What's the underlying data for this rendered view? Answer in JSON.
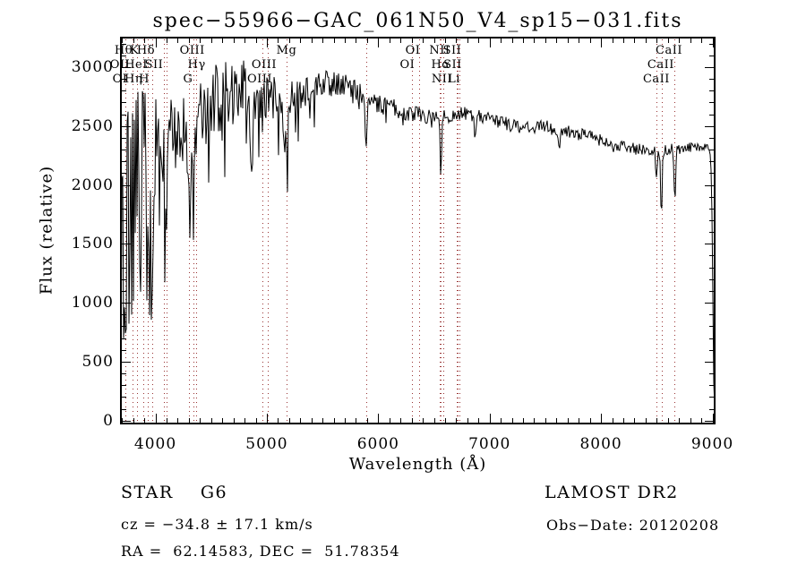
{
  "title": "spec−55966−GAC_061N50_V4_sp15−031.fits",
  "annotations": {
    "class_line": "STAR    G6",
    "survey": "LAMOST DR2",
    "cz": "cz = −34.8 ± 17.1 km/s",
    "obs_date": "Obs−Date: 20120208",
    "ra_dec": "RA =  62.14583, DEC =  51.78354"
  },
  "colors": {
    "spectrum": "#000000",
    "line_marker": "#993333",
    "axis": "#000000",
    "text": "#000000",
    "background": "#ffffff"
  },
  "chart_data": {
    "type": "line",
    "title": "spec−55966−GAC_061N50_V4_sp15−031.fits",
    "xlabel": "Wavelength (Å)",
    "ylabel": "Flux (relative)",
    "xlim": [
      3690,
      9020
    ],
    "ylim": [
      -25,
      3250
    ],
    "x_major_ticks": [
      4000,
      5000,
      6000,
      7000,
      8000,
      9000
    ],
    "y_major_ticks": [
      0,
      500,
      1000,
      1500,
      2000,
      2500,
      3000
    ],
    "minor_tick_step_x": 100,
    "minor_tick_step_y": 100,
    "grid": false,
    "legend": null,
    "continuum_points": [
      [
        3690,
        1500
      ],
      [
        3760,
        1800
      ],
      [
        3830,
        1950
      ],
      [
        3900,
        2100
      ],
      [
        3960,
        2250
      ],
      [
        4050,
        2350
      ],
      [
        4150,
        2420
      ],
      [
        4250,
        2470
      ],
      [
        4350,
        2550
      ],
      [
        4450,
        2650
      ],
      [
        4550,
        2720
      ],
      [
        4650,
        2780
      ],
      [
        4750,
        2820
      ],
      [
        4850,
        2810
      ],
      [
        4950,
        2760
      ],
      [
        5050,
        2720
      ],
      [
        5150,
        2720
      ],
      [
        5250,
        2760
      ],
      [
        5350,
        2800
      ],
      [
        5450,
        2830
      ],
      [
        5550,
        2860
      ],
      [
        5650,
        2870
      ],
      [
        5750,
        2840
      ],
      [
        5850,
        2780
      ],
      [
        5950,
        2700
      ],
      [
        6050,
        2670
      ],
      [
        6150,
        2650
      ],
      [
        6250,
        2620
      ],
      [
        6350,
        2600
      ],
      [
        6450,
        2570
      ],
      [
        6550,
        2560
      ],
      [
        6650,
        2590
      ],
      [
        6750,
        2610
      ],
      [
        6850,
        2600
      ],
      [
        6950,
        2570
      ],
      [
        7050,
        2540
      ],
      [
        7150,
        2520
      ],
      [
        7250,
        2490
      ],
      [
        7350,
        2480
      ],
      [
        7450,
        2495
      ],
      [
        7550,
        2500
      ],
      [
        7650,
        2470
      ],
      [
        7750,
        2440
      ],
      [
        7850,
        2420
      ],
      [
        7950,
        2400
      ],
      [
        8050,
        2370
      ],
      [
        8150,
        2340
      ],
      [
        8250,
        2315
      ],
      [
        8350,
        2300
      ],
      [
        8450,
        2295
      ],
      [
        8550,
        2300
      ],
      [
        8650,
        2305
      ],
      [
        8750,
        2315
      ],
      [
        8850,
        2330
      ],
      [
        8940,
        2330
      ],
      [
        8985,
        2280
      ],
      [
        9000,
        1600
      ],
      [
        9008,
        500
      ],
      [
        9015,
        160
      ],
      [
        9020,
        150
      ]
    ],
    "noise_envelope": [
      [
        3690,
        950
      ],
      [
        3780,
        1000
      ],
      [
        3880,
        950
      ],
      [
        3950,
        650
      ],
      [
        4020,
        420
      ],
      [
        4150,
        350
      ],
      [
        4350,
        320
      ],
      [
        4600,
        310
      ],
      [
        4850,
        240
      ],
      [
        5050,
        200
      ],
      [
        5250,
        170
      ],
      [
        5450,
        120
      ],
      [
        5700,
        100
      ],
      [
        5950,
        85
      ],
      [
        6250,
        72
      ],
      [
        6550,
        65
      ],
      [
        7000,
        58
      ],
      [
        7500,
        55
      ],
      [
        8000,
        50
      ],
      [
        8600,
        48
      ],
      [
        9020,
        45
      ]
    ],
    "absorption_features": [
      {
        "wl": 3933,
        "depth": 900,
        "sigma": 14
      },
      {
        "wl": 3968,
        "depth": 800,
        "sigma": 14
      },
      {
        "wl": 4101,
        "depth": 600,
        "sigma": 12
      },
      {
        "wl": 4304,
        "depth": 850,
        "sigma": 13
      },
      {
        "wl": 4340,
        "depth": 700,
        "sigma": 10
      },
      {
        "wl": 4861,
        "depth": 750,
        "sigma": 10
      },
      {
        "wl": 5175,
        "depth": 450,
        "sigma": 16
      },
      {
        "wl": 5890,
        "depth": 400,
        "sigma": 9
      },
      {
        "wl": 6563,
        "depth": 500,
        "sigma": 6
      },
      {
        "wl": 6867,
        "depth": 140,
        "sigma": 9
      },
      {
        "wl": 7620,
        "depth": 160,
        "sigma": 11
      },
      {
        "wl": 8498,
        "depth": 250,
        "sigma": 7
      },
      {
        "wl": 8542,
        "depth": 540,
        "sigma": 7
      },
      {
        "wl": 8662,
        "depth": 430,
        "sigma": 7
      }
    ],
    "line_markers": [
      3727,
      3798,
      3835,
      3889,
      3933,
      3968,
      4072,
      4101,
      4304,
      4340,
      4363,
      4959,
      5007,
      5175,
      5890,
      6300,
      6364,
      6548,
      6563,
      6583,
      6708,
      6716,
      6731,
      8498,
      8542,
      8662
    ],
    "line_labels": [
      {
        "text": "Hθ",
        "row": 1,
        "wl": 3714
      },
      {
        "text": "K",
        "row": 1,
        "wl": 3811
      },
      {
        "text": "Hδ",
        "row": 1,
        "wl": 3915
      },
      {
        "text": "OIII",
        "row": 1,
        "wl": 4331
      },
      {
        "text": "Mg",
        "row": 1,
        "wl": 5177
      },
      {
        "text": "OI",
        "row": 1,
        "wl": 6311
      },
      {
        "text": "NII",
        "row": 1,
        "wl": 6552
      },
      {
        "text": "SII",
        "row": 1,
        "wl": 6664
      },
      {
        "text": "CaII",
        "row": 1,
        "wl": 8610
      },
      {
        "text": "OII",
        "row": 2,
        "wl": 3682
      },
      {
        "text": "HeI",
        "row": 2,
        "wl": 3827
      },
      {
        "text": "SII",
        "row": 2,
        "wl": 3987
      },
      {
        "text": "Hγ",
        "row": 2,
        "wl": 4371
      },
      {
        "text": "OIII",
        "row": 2,
        "wl": 4976
      },
      {
        "text": "OI",
        "row": 2,
        "wl": 6262
      },
      {
        "text": "Hα",
        "row": 2,
        "wl": 6560
      },
      {
        "text": "SII",
        "row": 2,
        "wl": 6668
      },
      {
        "text": "CaII",
        "row": 2,
        "wl": 8537
      },
      {
        "text": "OI",
        "row": 3,
        "wl": 3682
      },
      {
        "text": "Hη",
        "row": 3,
        "wl": 3803
      },
      {
        "text": "H",
        "row": 3,
        "wl": 3899
      },
      {
        "text": "G",
        "row": 3,
        "wl": 4293
      },
      {
        "text": "OIII",
        "row": 3,
        "wl": 4936
      },
      {
        "text": "NII",
        "row": 3,
        "wl": 6572
      },
      {
        "text": "Li",
        "row": 3,
        "wl": 6681
      },
      {
        "text": "CaII",
        "row": 3,
        "wl": 8497
      }
    ]
  }
}
